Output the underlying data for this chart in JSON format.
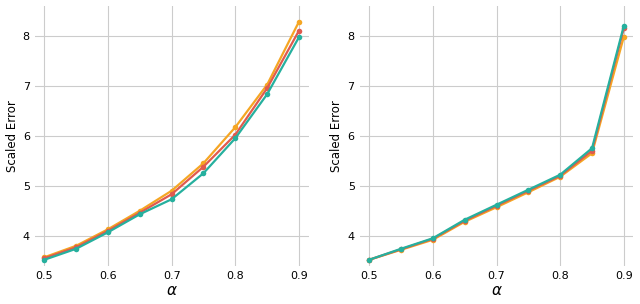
{
  "x": [
    0.5,
    0.55,
    0.6,
    0.65,
    0.7,
    0.75,
    0.8,
    0.85,
    0.9
  ],
  "left": {
    "teal": [
      3.52,
      3.74,
      4.07,
      4.43,
      4.73,
      5.25,
      5.95,
      6.83,
      7.97
    ],
    "red": [
      3.55,
      3.77,
      4.1,
      4.46,
      4.83,
      5.38,
      6.02,
      6.95,
      8.1
    ],
    "orange": [
      3.57,
      3.8,
      4.13,
      4.5,
      4.9,
      5.45,
      6.17,
      7.02,
      8.28
    ]
  },
  "right": {
    "teal": [
      3.52,
      3.74,
      3.95,
      4.32,
      4.62,
      4.92,
      5.22,
      5.75,
      8.2
    ],
    "red": [
      3.52,
      3.73,
      3.94,
      4.3,
      4.6,
      4.9,
      5.2,
      5.7,
      8.15
    ],
    "orange": [
      3.52,
      3.72,
      3.92,
      4.28,
      4.57,
      4.87,
      5.18,
      5.65,
      7.98
    ]
  },
  "colors": {
    "teal": "#26b09e",
    "red": "#e05a4e",
    "orange": "#f5a623"
  },
  "ylabel": "Scaled Error",
  "xlabel": "α",
  "left_ylim": [
    3.4,
    8.6
  ],
  "right_ylim": [
    3.4,
    8.6
  ],
  "left_yticks": [
    4,
    5,
    6,
    7,
    8
  ],
  "right_yticks": [
    4,
    5,
    6,
    7,
    8
  ],
  "xticks": [
    0.5,
    0.6,
    0.7,
    0.8,
    0.9
  ],
  "bg_color": "#ffffff",
  "grid_color": "#cccccc",
  "marker": "o",
  "markersize": 4,
  "linewidth": 1.6
}
